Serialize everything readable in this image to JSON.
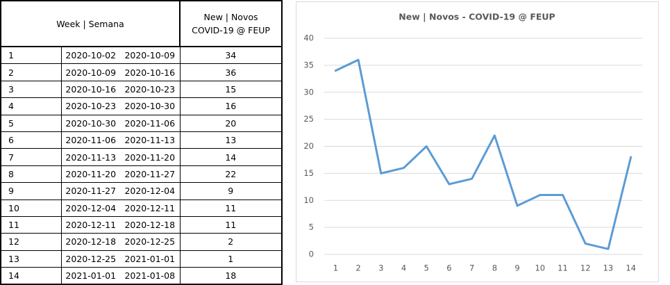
{
  "table": {
    "header": {
      "week": "Week | Semana",
      "new": [
        "New | Novos",
        "COVID-19 @ FEUP"
      ]
    },
    "rows": [
      [
        1,
        "2020-10-02",
        "2020-10-09",
        34
      ],
      [
        2,
        "2020-10-09",
        "2020-10-16",
        36
      ],
      [
        3,
        "2020-10-16",
        "2020-10-23",
        15
      ],
      [
        4,
        "2020-10-23",
        "2020-10-30",
        16
      ],
      [
        5,
        "2020-10-30",
        "2020-11-06",
        20
      ],
      [
        6,
        "2020-11-06",
        "2020-11-13",
        13
      ],
      [
        7,
        "2020-11-13",
        "2020-11-20",
        14
      ],
      [
        8,
        "2020-11-20",
        "2020-11-27",
        22
      ],
      [
        9,
        "2020-11-27",
        "2020-12-04",
        9
      ],
      [
        10,
        "2020-12-04",
        "2020-12-11",
        11
      ],
      [
        11,
        "2020-12-11",
        "2020-12-18",
        11
      ],
      [
        12,
        "2020-12-18",
        "2020-12-25",
        2
      ],
      [
        13,
        "2020-12-25",
        "2021-01-01",
        1
      ],
      [
        14,
        "2021-01-01",
        "2021-01-08",
        18
      ]
    ]
  },
  "chart_data": {
    "type": "line",
    "title": "New | Novos - COVID-19 @ FEUP",
    "categories": [
      "1",
      "2",
      "3",
      "4",
      "5",
      "6",
      "7",
      "8",
      "9",
      "10",
      "11",
      "12",
      "13",
      "14"
    ],
    "values": [
      34,
      36,
      15,
      16,
      20,
      13,
      14,
      22,
      9,
      11,
      11,
      2,
      1,
      18
    ],
    "color": "#5b9bd5",
    "ylim": [
      0,
      40
    ],
    "yticks": [
      0,
      5,
      10,
      15,
      20,
      25,
      30,
      35,
      40
    ],
    "grid": true
  }
}
